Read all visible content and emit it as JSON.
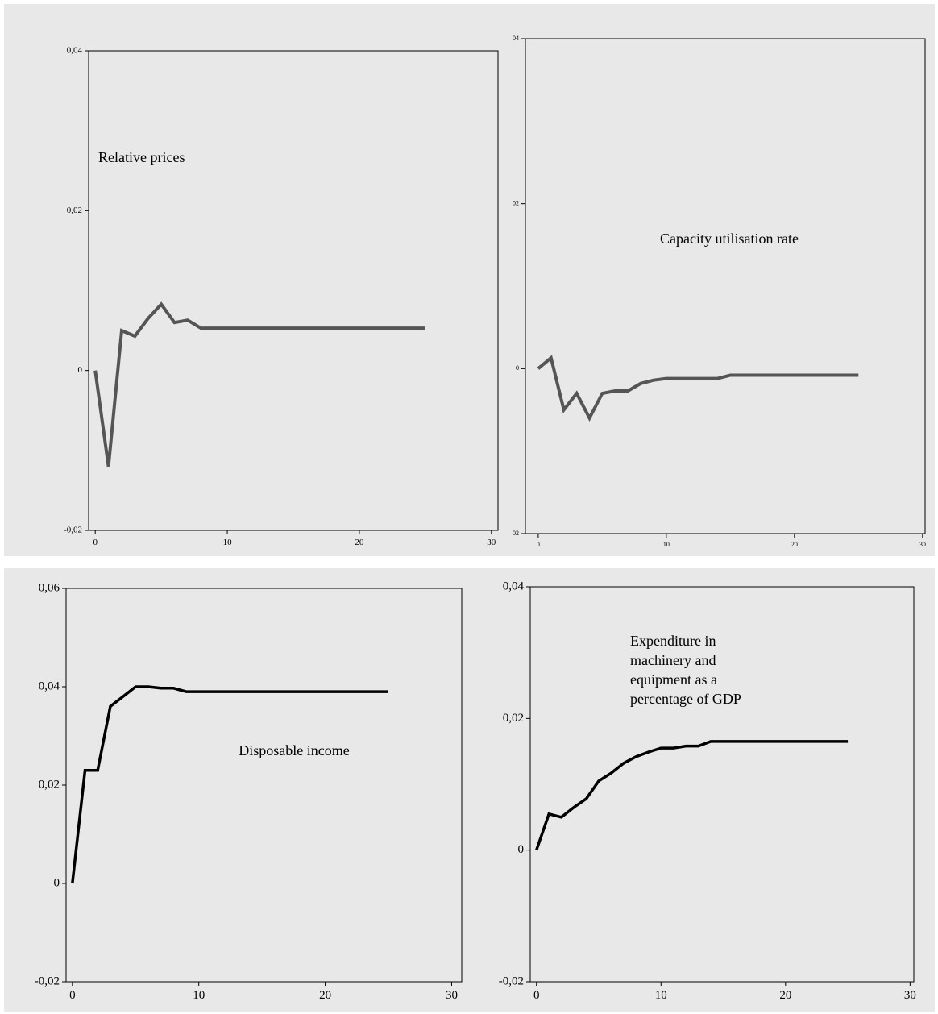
{
  "chart_data": [
    {
      "type": "line",
      "annotation": [
        "Relative prices"
      ],
      "x": [
        0,
        1,
        2,
        3,
        4,
        5,
        6,
        7,
        8,
        9,
        10,
        11,
        12,
        13,
        14,
        15,
        16,
        17,
        18,
        19,
        20,
        21,
        22,
        23,
        24,
        25
      ],
      "values": [
        0,
        -0.012,
        0.005,
        0.0043,
        0.0065,
        0.0083,
        0.006,
        0.0063,
        0.0053,
        0.0053,
        0.0053,
        0.0053,
        0.0053,
        0.0053,
        0.0053,
        0.0053,
        0.0053,
        0.0053,
        0.0053,
        0.0053,
        0.0053,
        0.0053,
        0.0053,
        0.0053,
        0.0053,
        0.0053
      ],
      "color": "#555555",
      "xlim": [
        -0.5,
        30.5
      ],
      "xticks": [
        0,
        10,
        20,
        30
      ],
      "ylim": [
        -0.02,
        0.04
      ],
      "yticks": [
        {
          "value": -0.02,
          "label": "-0,02"
        },
        0,
        {
          "value": 0.02,
          "label": "0,02"
        },
        {
          "value": 0.04,
          "label": "0,04"
        }
      ]
    },
    {
      "type": "line",
      "annotation": [
        "Capacity utilisation rate"
      ],
      "x": [
        0,
        1,
        2,
        3,
        4,
        5,
        6,
        7,
        8,
        9,
        10,
        11,
        12,
        13,
        14,
        15,
        16,
        17,
        18,
        19,
        20,
        21,
        22,
        23,
        24,
        25
      ],
      "values": [
        0,
        0.0013,
        -0.005,
        -0.003,
        -0.006,
        -0.003,
        -0.0027,
        -0.0027,
        -0.0018,
        -0.0014,
        -0.0012,
        -0.0012,
        -0.0012,
        -0.0012,
        -0.0012,
        -0.0008,
        -0.0008,
        -0.0008,
        -0.0008,
        -0.0008,
        -0.0008,
        -0.0008,
        -0.0008,
        -0.0008,
        -0.0008,
        -0.0008
      ],
      "color": "#555555",
      "xlim": [
        -1,
        30.2
      ],
      "xticks": [
        0,
        10,
        20,
        30
      ],
      "ylim": [
        -0.02,
        0.04
      ],
      "yticks": [
        {
          "value": -0.02,
          "label": "02"
        },
        0,
        {
          "value": 0.02,
          "label": "02"
        },
        {
          "value": 0.04,
          "label": "04"
        }
      ]
    },
    {
      "type": "line",
      "annotation": [
        "Disposable income"
      ],
      "x": [
        0,
        1,
        2,
        3,
        4,
        5,
        6,
        7,
        8,
        9,
        10,
        11,
        12,
        13,
        14,
        15,
        16,
        17,
        18,
        19,
        20,
        21,
        22,
        23,
        24,
        25
      ],
      "values": [
        0,
        0.023,
        0.023,
        0.036,
        0.038,
        0.04,
        0.04,
        0.0397,
        0.0397,
        0.039,
        0.039,
        0.039,
        0.039,
        0.039,
        0.039,
        0.039,
        0.039,
        0.039,
        0.039,
        0.039,
        0.039,
        0.039,
        0.039,
        0.039,
        0.039,
        0.039
      ],
      "color": "#000000",
      "xlim": [
        -0.5,
        30.8
      ],
      "xticks": [
        0,
        10,
        20,
        30
      ],
      "ylim": [
        -0.02,
        0.06
      ],
      "yticks": [
        {
          "value": -0.02,
          "label": "-0,02"
        },
        0,
        {
          "value": 0.02,
          "label": "0,02"
        },
        {
          "value": 0.04,
          "label": "0,04"
        },
        {
          "value": 0.06,
          "label": "0,06"
        }
      ]
    },
    {
      "type": "line",
      "annotation": [
        "Expenditure in",
        "machinery and",
        "equipment as a",
        "percentage of GDP"
      ],
      "x": [
        0,
        1,
        2,
        3,
        4,
        5,
        6,
        7,
        8,
        9,
        10,
        11,
        12,
        13,
        14,
        15,
        16,
        17,
        18,
        19,
        20,
        21,
        22,
        23,
        24,
        25
      ],
      "values": [
        0,
        0.0055,
        0.005,
        0.0065,
        0.0078,
        0.0105,
        0.0117,
        0.0132,
        0.0142,
        0.0149,
        0.0155,
        0.0155,
        0.0158,
        0.0158,
        0.0165,
        0.0165,
        0.0165,
        0.0165,
        0.0165,
        0.0165,
        0.0165,
        0.0165,
        0.0165,
        0.0165,
        0.0165,
        0.0165
      ],
      "color": "#000000",
      "xlim": [
        -0.5,
        30.3
      ],
      "xticks": [
        0,
        10,
        20,
        30
      ],
      "ylim": [
        -0.02,
        0.04
      ],
      "yticks": [
        {
          "value": -0.02,
          "label": "-0,02"
        },
        0,
        {
          "value": 0.02,
          "label": "0,02"
        },
        {
          "value": 0.04,
          "label": "0,04"
        }
      ]
    }
  ]
}
